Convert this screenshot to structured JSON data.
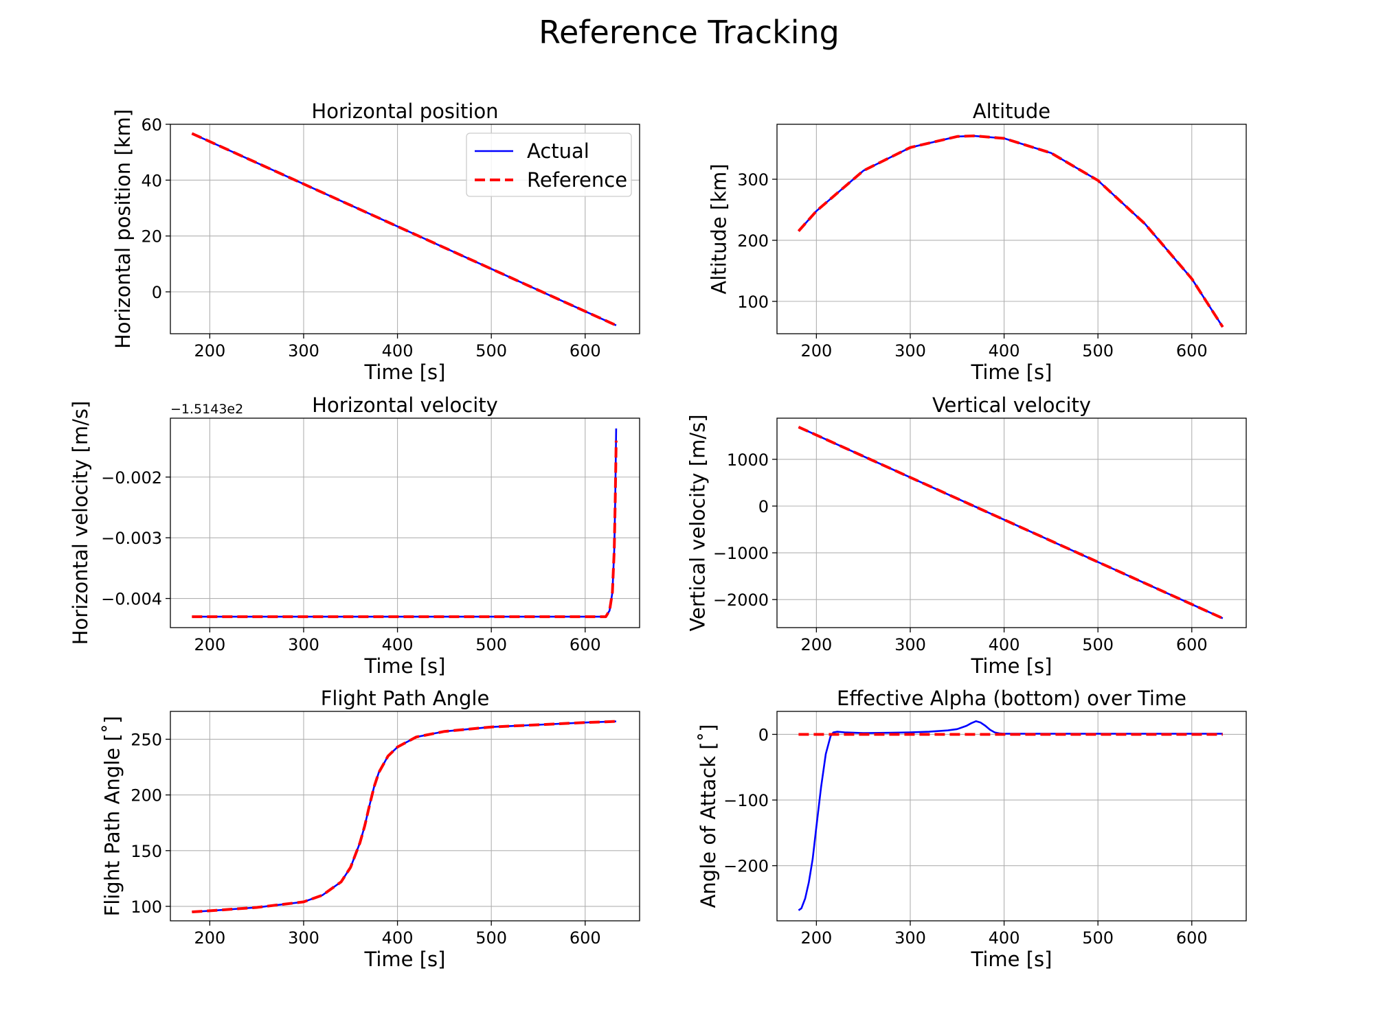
{
  "figure": {
    "suptitle": "Reference Tracking"
  },
  "colors": {
    "actual": "#0000ff",
    "reference": "#ff0000"
  },
  "chart_data": [
    {
      "type": "line",
      "title": "Horizontal position",
      "xlabel": "Time [s]",
      "ylabel": "Horizontal position [km]",
      "xlim": [
        158,
        658
      ],
      "ylim": [
        -15,
        60
      ],
      "xticks": [
        200,
        300,
        400,
        500,
        600
      ],
      "yticks": [
        0,
        20,
        40,
        60
      ],
      "grid": true,
      "legend": {
        "placement": "upper right",
        "entries": [
          "Actual",
          "Reference"
        ]
      },
      "series": [
        {
          "name": "Actual",
          "style": "solid",
          "x": [
            181,
            633
          ],
          "y": [
            56.7,
            -12
          ]
        },
        {
          "name": "Reference",
          "style": "dashed",
          "x": [
            181,
            633
          ],
          "y": [
            56.7,
            -12
          ]
        }
      ]
    },
    {
      "type": "line",
      "title": "Altitude",
      "xlabel": "Time [s]",
      "ylabel": "Altitude [km]",
      "xlim": [
        158,
        658
      ],
      "ylim": [
        47,
        390
      ],
      "xticks": [
        200,
        300,
        400,
        500,
        600
      ],
      "yticks": [
        100,
        200,
        300
      ],
      "grid": true,
      "series": [
        {
          "name": "Actual",
          "style": "solid",
          "x": [
            181,
            200,
            250,
            300,
            350,
            368,
            400,
            450,
            500,
            550,
            600,
            633
          ],
          "y": [
            215,
            248,
            314,
            352,
            370,
            371,
            367,
            343,
            298,
            227,
            137,
            58
          ]
        },
        {
          "name": "Reference",
          "style": "dashed",
          "x": [
            181,
            200,
            250,
            300,
            350,
            368,
            400,
            450,
            500,
            550,
            600,
            633
          ],
          "y": [
            215,
            248,
            314,
            352,
            370,
            371,
            367,
            343,
            298,
            227,
            137,
            58
          ]
        }
      ]
    },
    {
      "type": "line",
      "title": "Horizontal velocity",
      "xlabel": "Time [s]",
      "ylabel": "Horizontal velocity [m/s]",
      "offset_text": "−1.5143e2",
      "xlim": [
        158,
        658
      ],
      "ylim": [
        -0.00448,
        -0.00103
      ],
      "xticks": [
        200,
        300,
        400,
        500,
        600
      ],
      "yticks": [
        -0.004,
        -0.003,
        -0.002
      ],
      "ytick_labels": [
        "−0.004",
        "−0.003",
        "−0.002"
      ],
      "grid": true,
      "series": [
        {
          "name": "Actual",
          "style": "solid",
          "x": [
            181,
            300,
            400,
            500,
            600,
            622,
            626,
            629,
            631,
            632,
            633
          ],
          "y": [
            -0.0043,
            -0.0043,
            -0.0043,
            -0.0043,
            -0.0043,
            -0.0043,
            -0.0042,
            -0.0039,
            -0.0032,
            -0.0024,
            -0.0012
          ]
        },
        {
          "name": "Reference",
          "style": "dashed",
          "x": [
            181,
            300,
            400,
            500,
            600,
            622,
            626,
            629,
            631,
            632,
            633
          ],
          "y": [
            -0.0043,
            -0.0043,
            -0.0043,
            -0.0043,
            -0.0043,
            -0.0043,
            -0.0042,
            -0.0039,
            -0.0032,
            -0.0024,
            -0.0014
          ]
        }
      ]
    },
    {
      "type": "line",
      "title": "Vertical velocity",
      "xlabel": "Time [s]",
      "ylabel": "Vertical velocity [m/s]",
      "xlim": [
        158,
        658
      ],
      "ylim": [
        -2600,
        1880
      ],
      "xticks": [
        200,
        300,
        400,
        500,
        600
      ],
      "yticks": [
        -2000,
        -1000,
        0,
        1000
      ],
      "ytick_labels": [
        "−2000",
        "−1000",
        "0",
        "1000"
      ],
      "grid": true,
      "series": [
        {
          "name": "Actual",
          "style": "solid",
          "x": [
            181,
            633
          ],
          "y": [
            1690,
            -2400
          ]
        },
        {
          "name": "Reference",
          "style": "dashed",
          "x": [
            181,
            633
          ],
          "y": [
            1690,
            -2400
          ]
        }
      ]
    },
    {
      "type": "line",
      "title": "Flight Path Angle",
      "xlabel": "Time [s]",
      "ylabel": "Flight Path Angle [˚]",
      "xlim": [
        158,
        658
      ],
      "ylim": [
        87,
        275
      ],
      "xticks": [
        200,
        300,
        400,
        500,
        600
      ],
      "yticks": [
        100,
        150,
        200,
        250
      ],
      "grid": true,
      "series": [
        {
          "name": "Actual",
          "style": "solid",
          "x": [
            181,
            200,
            250,
            300,
            320,
            340,
            350,
            360,
            365,
            370,
            375,
            380,
            390,
            400,
            420,
            450,
            500,
            550,
            600,
            633
          ],
          "y": [
            95,
            96,
            99,
            104,
            110,
            122,
            135,
            157,
            172,
            190,
            207,
            220,
            235,
            243,
            252,
            257,
            261,
            263,
            265,
            266
          ]
        },
        {
          "name": "Reference",
          "style": "dashed",
          "x": [
            181,
            200,
            250,
            300,
            320,
            340,
            350,
            360,
            365,
            370,
            375,
            380,
            390,
            400,
            420,
            450,
            500,
            550,
            600,
            633
          ],
          "y": [
            95,
            96,
            99,
            104,
            110,
            122,
            135,
            157,
            172,
            190,
            207,
            220,
            235,
            243,
            252,
            257,
            261,
            263,
            265,
            266
          ]
        }
      ]
    },
    {
      "type": "line",
      "title": "Effective Alpha (bottom) over Time",
      "xlabel": "Time [s]",
      "ylabel": "Angle of Attack [˚]",
      "xlim": [
        158,
        658
      ],
      "ylim": [
        -284,
        35
      ],
      "xticks": [
        200,
        300,
        400,
        500,
        600
      ],
      "yticks": [
        -200,
        -100,
        0
      ],
      "ytick_labels": [
        "−200",
        "−100",
        "0"
      ],
      "grid": true,
      "series": [
        {
          "name": "Actual",
          "style": "solid",
          "x": [
            181,
            184,
            188,
            192,
            196,
            200,
            205,
            210,
            215,
            218,
            222,
            230,
            250,
            280,
            300,
            320,
            340,
            350,
            360,
            365,
            370,
            375,
            380,
            385,
            390,
            395,
            400,
            420,
            450,
            500,
            550,
            600,
            633
          ],
          "y": [
            -268,
            -265,
            -250,
            -225,
            -190,
            -140,
            -80,
            -30,
            -3,
            3,
            4,
            3,
            2,
            2.5,
            3,
            4,
            6,
            8,
            13,
            17,
            20,
            18,
            13,
            7,
            3,
            1.5,
            1,
            1,
            1,
            1,
            1,
            1,
            1
          ]
        },
        {
          "name": "Reference",
          "style": "dashed",
          "x": [
            181,
            633
          ],
          "y": [
            0,
            0
          ]
        }
      ]
    }
  ]
}
